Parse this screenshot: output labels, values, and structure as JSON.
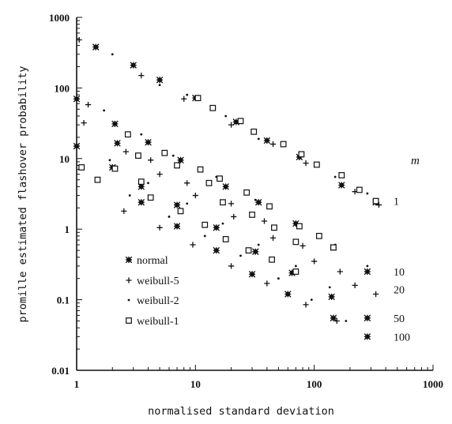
{
  "chart_data": {
    "type": "scatter",
    "xlabel": "normalised standard deviation",
    "ylabel": "promille estimated flashover probability",
    "xscale": "log",
    "yscale": "log",
    "xlim": [
      1,
      1000
    ],
    "ylim": [
      0.01,
      1000
    ],
    "x_ticks": [
      "1",
      "10",
      "100",
      "1000"
    ],
    "y_ticks": [
      "0.01",
      "0.1",
      "1",
      "10",
      "100",
      "1000"
    ],
    "legend_position": "lower-left",
    "series": [
      {
        "name": "normal",
        "marker": "star",
        "points": [
          [
            1.45,
            380
          ],
          [
            3.0,
            210
          ],
          [
            5.0,
            130
          ],
          [
            10,
            72
          ],
          [
            22,
            33
          ],
          [
            40,
            18
          ],
          [
            75,
            10.5
          ],
          [
            170,
            4.2
          ],
          [
            330,
            2.4
          ],
          [
            1.0,
            70
          ],
          [
            2.1,
            31
          ],
          [
            4.0,
            17
          ],
          [
            7.5,
            9.5
          ],
          [
            18,
            4.0
          ],
          [
            34,
            2.4
          ],
          [
            70,
            1.2
          ],
          [
            145,
            0.55
          ],
          [
            280,
            0.25
          ],
          [
            1.0,
            15
          ],
          [
            2.0,
            7.5
          ],
          [
            3.5,
            4.0
          ],
          [
            7.0,
            2.2
          ],
          [
            15,
            1.05
          ],
          [
            32,
            0.48
          ],
          [
            65,
            0.24
          ],
          [
            140,
            0.11
          ],
          [
            280,
            0.055
          ],
          [
            2.2,
            16.5
          ],
          [
            3.5,
            2.4
          ],
          [
            7.0,
            1.1
          ],
          [
            15,
            0.5
          ],
          [
            30,
            0.23
          ],
          [
            60,
            0.12
          ],
          [
            145,
            0.055
          ],
          [
            280,
            0.03
          ]
        ]
      },
      {
        "name": "weibull-5",
        "marker": "plus",
        "points": [
          [
            1.05,
            480
          ],
          [
            3.5,
            150
          ],
          [
            8.0,
            70
          ],
          [
            20,
            30
          ],
          [
            45,
            16
          ],
          [
            85,
            8.6
          ],
          [
            220,
            3.4
          ],
          [
            350,
            2.2
          ],
          [
            1.15,
            32
          ],
          [
            2.6,
            12.5
          ],
          [
            5.0,
            6.0
          ],
          [
            10,
            3.0
          ],
          [
            21,
            1.5
          ],
          [
            45,
            0.75
          ],
          [
            100,
            0.35
          ],
          [
            220,
            0.16
          ],
          [
            1.25,
            58
          ],
          [
            4.2,
            9.5
          ],
          [
            8.5,
            4.5
          ],
          [
            20,
            2.3
          ],
          [
            38,
            1.3
          ],
          [
            80,
            0.58
          ],
          [
            165,
            0.25
          ],
          [
            330,
            0.12
          ],
          [
            2.5,
            1.8
          ],
          [
            5.0,
            1.05
          ],
          [
            9.5,
            0.6
          ],
          [
            20,
            0.3
          ],
          [
            40,
            0.17
          ],
          [
            85,
            0.085
          ],
          [
            155,
            0.05
          ]
        ]
      },
      {
        "name": "weibull-2",
        "marker": "dot",
        "points": [
          [
            2.0,
            300
          ],
          [
            5.0,
            110
          ],
          [
            8.5,
            80
          ],
          [
            18,
            40
          ],
          [
            34,
            19
          ],
          [
            75,
            12
          ],
          [
            150,
            5.5
          ],
          [
            280,
            3.2
          ],
          [
            1.7,
            48
          ],
          [
            3.5,
            22
          ],
          [
            6.5,
            11
          ],
          [
            15,
            5.5
          ],
          [
            32,
            2.6
          ],
          [
            70,
            1.2
          ],
          [
            150,
            0.6
          ],
          [
            280,
            0.3
          ],
          [
            1.9,
            9.5
          ],
          [
            4.0,
            4.5
          ],
          [
            8.5,
            2.3
          ],
          [
            17,
            1.2
          ],
          [
            34,
            0.6
          ],
          [
            70,
            0.3
          ],
          [
            135,
            0.15
          ],
          [
            2.8,
            3.0
          ],
          [
            6.0,
            1.5
          ],
          [
            12,
            0.8
          ],
          [
            24,
            0.42
          ],
          [
            50,
            0.2
          ],
          [
            95,
            0.1
          ],
          [
            185,
            0.05
          ]
        ]
      },
      {
        "name": "weibull-1",
        "marker": "square",
        "points": [
          [
            10.5,
            72
          ],
          [
            14,
            52
          ],
          [
            24,
            34
          ],
          [
            31,
            24
          ],
          [
            55,
            16
          ],
          [
            78,
            11.5
          ],
          [
            105,
            8.2
          ],
          [
            170,
            5.8
          ],
          [
            240,
            3.6
          ],
          [
            330,
            2.5
          ],
          [
            2.7,
            22
          ],
          [
            5.5,
            12
          ],
          [
            11,
            7.0
          ],
          [
            16,
            5.2
          ],
          [
            27,
            3.3
          ],
          [
            42,
            2.1
          ],
          [
            75,
            1.1
          ],
          [
            110,
            0.8
          ],
          [
            145,
            0.55
          ],
          [
            1.1,
            7.5
          ],
          [
            2.1,
            7.2
          ],
          [
            3.3,
            11
          ],
          [
            7.0,
            8.0
          ],
          [
            13,
            4.5
          ],
          [
            17,
            2.4
          ],
          [
            30,
            1.6
          ],
          [
            46,
            1.05
          ],
          [
            70,
            0.66
          ],
          [
            1.5,
            5.0
          ],
          [
            3.5,
            4.7
          ],
          [
            4.2,
            2.8
          ],
          [
            7.5,
            1.8
          ],
          [
            12,
            1.15
          ],
          [
            18,
            0.72
          ],
          [
            28,
            0.5
          ],
          [
            44,
            0.37
          ],
          [
            70,
            0.25
          ]
        ]
      }
    ],
    "m_title": "m",
    "m_labels": [
      {
        "text": "1",
        "y": 2.5
      },
      {
        "text": "10",
        "y": 0.25
      },
      {
        "text": "20",
        "y": 0.14
      },
      {
        "text": "50",
        "y": 0.055
      },
      {
        "text": "100",
        "y": 0.03
      }
    ],
    "m_title_y": 9.5
  }
}
